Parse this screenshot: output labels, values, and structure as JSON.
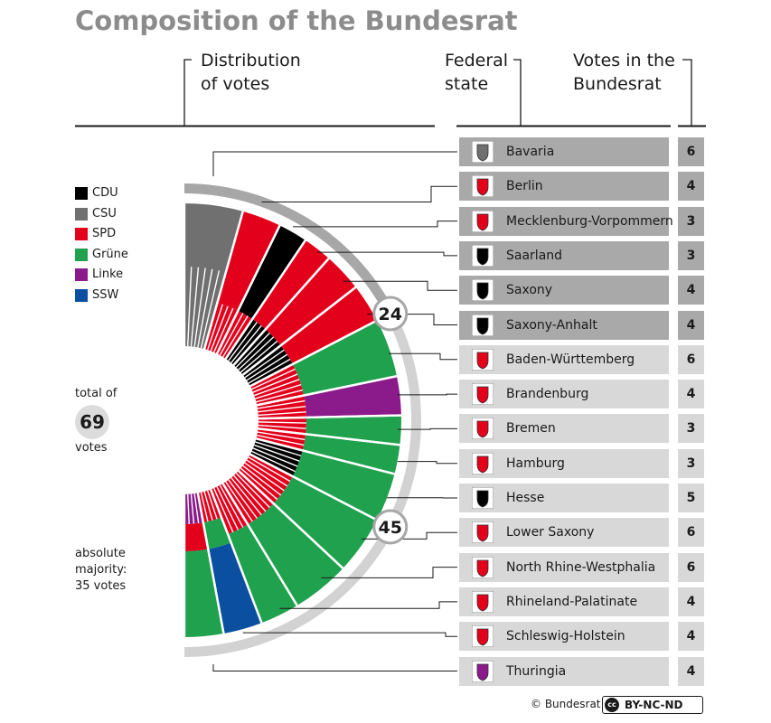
{
  "title": "Composition of the Bundesrat",
  "headers": {
    "distribution": "Distribution\nof votes",
    "state": "Federal\nstate",
    "votes": "Votes in the\nBundesrat"
  },
  "legend": [
    {
      "party": "CDU",
      "color": "#000000"
    },
    {
      "party": "CSU",
      "color": "#707070"
    },
    {
      "party": "SPD",
      "color": "#e3001b"
    },
    {
      "party": "Grüne",
      "color": "#1fa14d"
    },
    {
      "party": "Linke",
      "color": "#8b1a8b"
    },
    {
      "party": "SSW",
      "color": "#0a4fa0"
    }
  ],
  "total": {
    "prefix": "total of",
    "value": "69",
    "suffix": "votes"
  },
  "majority": "absolute\nmajority:\n35 votes",
  "markers": [
    "24",
    "45"
  ],
  "chart_data": {
    "type": "pie",
    "title": "Composition of the Bundesrat",
    "total_votes": 69,
    "states": [
      {
        "name": "Bavaria",
        "votes": 6,
        "parties": [
          "CSU"
        ],
        "shaded": true
      },
      {
        "name": "Berlin",
        "votes": 4,
        "parties": [
          "SPD",
          "SPD"
        ],
        "shaded": true
      },
      {
        "name": "Mecklenburg-Vorpommern",
        "votes": 3,
        "parties": [
          "SPD",
          "CDU"
        ],
        "shaded": true
      },
      {
        "name": "Saarland",
        "votes": 3,
        "parties": [
          "CDU",
          "SPD"
        ],
        "shaded": true
      },
      {
        "name": "Saxony",
        "votes": 4,
        "parties": [
          "CDU",
          "SPD"
        ],
        "shaded": true
      },
      {
        "name": "Saxony-Anhalt",
        "votes": 4,
        "parties": [
          "CDU",
          "SPD"
        ],
        "shaded": true
      },
      {
        "name": "Baden-Württemberg",
        "votes": 6,
        "parties": [
          "SPD",
          "Grüne"
        ],
        "shaded": false
      },
      {
        "name": "Brandenburg",
        "votes": 4,
        "parties": [
          "SPD",
          "Linke"
        ],
        "shaded": false
      },
      {
        "name": "Bremen",
        "votes": 3,
        "parties": [
          "SPD",
          "Grüne"
        ],
        "shaded": false
      },
      {
        "name": "Hamburg",
        "votes": 3,
        "parties": [
          "SPD",
          "Grüne"
        ],
        "shaded": false
      },
      {
        "name": "Hesse",
        "votes": 5,
        "parties": [
          "CDU",
          "Grüne"
        ],
        "shaded": false
      },
      {
        "name": "Lower Saxony",
        "votes": 6,
        "parties": [
          "SPD",
          "Grüne"
        ],
        "shaded": false
      },
      {
        "name": "North Rhine-Westphalia",
        "votes": 6,
        "parties": [
          "SPD",
          "Grüne"
        ],
        "shaded": false
      },
      {
        "name": "Rhineland-Palatinate",
        "votes": 4,
        "parties": [
          "SPD",
          "Grüne"
        ],
        "shaded": false
      },
      {
        "name": "Schleswig-Holstein",
        "votes": 4,
        "parties": [
          "SPD",
          "Grüne",
          "SSW"
        ],
        "shaded": false
      },
      {
        "name": "Thuringia",
        "votes": 4,
        "parties": [
          "Linke",
          "SPD",
          "Grüne"
        ],
        "shaded": false
      }
    ],
    "shaded_votes": 24,
    "unshaded_votes": 45,
    "majority": 35
  },
  "footer": {
    "copyright": "© Bundesrat",
    "license": "BY-NC-ND",
    "cc_logo": "cc"
  }
}
